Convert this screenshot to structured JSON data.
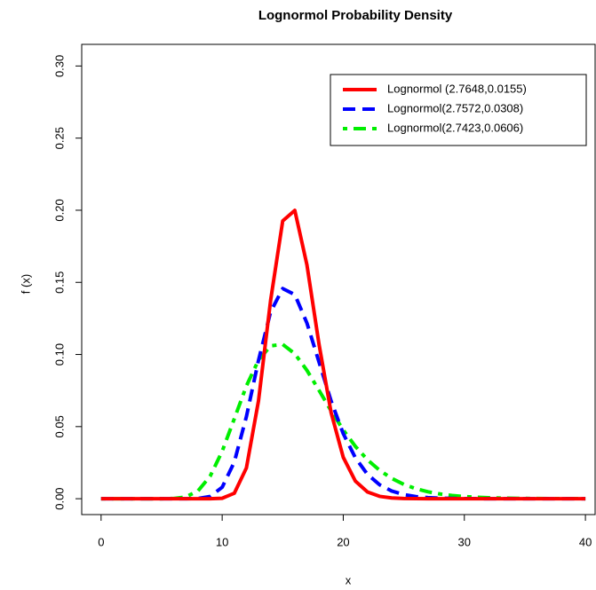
{
  "chart_data": {
    "type": "line",
    "title": "Lognormol Probability Density",
    "x_label": "x",
    "y_label": "f (x)",
    "x": [
      0,
      1,
      2,
      3,
      4,
      5,
      6,
      7,
      8,
      9,
      10,
      11,
      12,
      13,
      14,
      15,
      16,
      17,
      18,
      19,
      20,
      21,
      22,
      23,
      24,
      25,
      26,
      27,
      28,
      29,
      30,
      31,
      32,
      33,
      34,
      35,
      36,
      37,
      38,
      39,
      40
    ],
    "series": [
      {
        "name": "Lognormol (2.7648,0.0155)",
        "color": "#ff0000",
        "linestyle": "solid",
        "values": [
          0,
          0,
          0,
          0,
          0,
          0,
          0,
          0,
          0,
          1e-05,
          0.000326,
          0.003787,
          0.02133,
          0.0679,
          0.1375,
          0.1926,
          0.1999,
          0.1621,
          0.107,
          0.0596,
          0.0287,
          0.01222,
          0.0047,
          0.00166,
          0.00054,
          0.000166,
          5e-05,
          1e-05,
          0,
          0,
          0,
          0,
          0,
          0,
          0,
          0,
          0,
          0,
          0,
          0,
          0
        ]
      },
      {
        "name": "Lognormol(2.7572,0.0308)",
        "color": "#0000ff",
        "linestyle": "dashed",
        "values": [
          0,
          0,
          0,
          0,
          0,
          0,
          0,
          1e-05,
          0.000164,
          0.00155,
          0.00793,
          0.0254,
          0.0569,
          0.0959,
          0.1295,
          0.1457,
          0.1415,
          0.1218,
          0.0947,
          0.0677,
          0.0451,
          0.0284,
          0.0169,
          0.00969,
          0.00534,
          0.00286,
          0.00149,
          0.00076,
          0.00038,
          0.00019,
          9e-05,
          4e-05,
          2e-05,
          1e-05,
          0,
          0,
          0,
          0,
          0,
          0,
          0
        ]
      },
      {
        "name": "Lognormol(2.7423,0.0606)",
        "color": "#00ee00",
        "linestyle": "dotdash",
        "values": [
          0,
          0,
          0,
          0,
          0,
          8e-06,
          0.000156,
          0.00124,
          0.00539,
          0.0155,
          0.0329,
          0.0554,
          0.0782,
          0.0961,
          0.106,
          0.107,
          0.1005,
          0.089,
          0.0751,
          0.0609,
          0.0477,
          0.0363,
          0.027,
          0.0197,
          0.0141,
          0.00995,
          0.00694,
          0.00479,
          0.00328,
          0.00222,
          0.0015,
          0.00101,
          0.00068,
          0.00045,
          0.0003,
          0.0002,
          0.00013,
          9e-05,
          6e-05,
          4e-05,
          3e-05
        ]
      }
    ],
    "xlim": [
      -1.6,
      40.8
    ],
    "ylim": [
      -0.011,
      0.315
    ],
    "xticks": [
      0,
      10,
      20,
      30,
      40
    ],
    "yticks": [
      {
        "value": 0,
        "label": "0.00"
      },
      {
        "value": 0.05,
        "label": "0.05"
      },
      {
        "value": 0.1,
        "label": "0.10"
      },
      {
        "value": 0.15,
        "label": "0.15"
      },
      {
        "value": 0.2,
        "label": "0.20"
      },
      {
        "value": 0.25,
        "label": "0.25"
      },
      {
        "value": 0.3,
        "label": "0.30"
      }
    ],
    "legend": "top-right"
  }
}
